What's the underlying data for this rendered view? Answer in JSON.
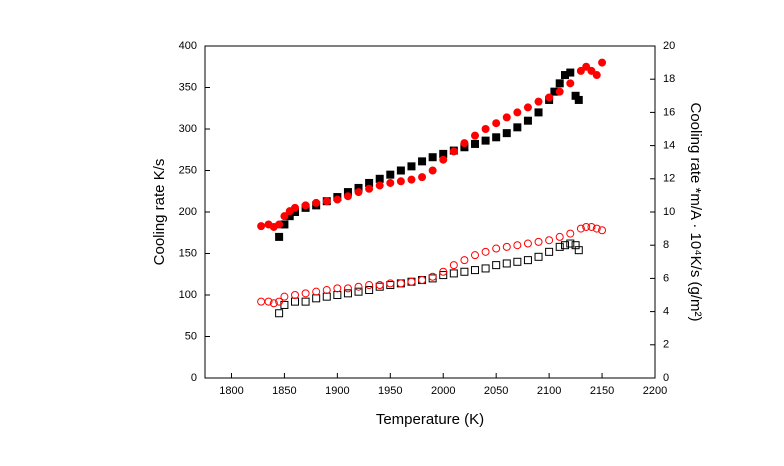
{
  "chart_data": {
    "type": "scatter",
    "x_label": "Temperature (K)",
    "y_label": "Cooling rate  K/s",
    "y2_label": "Cooling rate *m/A · 10⁴K/s (g/m²)",
    "xlim": [
      1775,
      2200
    ],
    "xticks": [
      1800,
      1850,
      1900,
      1950,
      2000,
      2050,
      2100,
      2150,
      2200
    ],
    "ylim": [
      0,
      400
    ],
    "yticks": [
      0,
      50,
      100,
      150,
      200,
      250,
      300,
      350,
      400
    ],
    "y2lim": [
      0,
      20
    ],
    "y2ticks": [
      0,
      2,
      4,
      6,
      8,
      10,
      12,
      14,
      16,
      18,
      20
    ],
    "series": [
      {
        "color": "#000000",
        "marker": "square",
        "filled": true,
        "x": [
          1845,
          1850,
          1855,
          1860,
          1870,
          1880,
          1890,
          1900,
          1910,
          1920,
          1930,
          1940,
          1950,
          1960,
          1970,
          1980,
          1990,
          2000,
          2010,
          2020,
          2030,
          2040,
          2050,
          2060,
          2070,
          2080,
          2090,
          2100,
          2105,
          2110,
          2115,
          2120,
          2125,
          2128
        ],
        "values": [
          170,
          185,
          195,
          200,
          205,
          208,
          213,
          218,
          224,
          229,
          235,
          240,
          245,
          250,
          255,
          261,
          266,
          270,
          274,
          278,
          282,
          286,
          290,
          295,
          302,
          310,
          320,
          335,
          345,
          355,
          365,
          368,
          340,
          335
        ]
      },
      {
        "color": "#ff0000",
        "marker": "circle",
        "filled": true,
        "x": [
          1828,
          1835,
          1840,
          1845,
          1850,
          1855,
          1860,
          1870,
          1880,
          1890,
          1900,
          1910,
          1920,
          1930,
          1940,
          1950,
          1960,
          1970,
          1980,
          1990,
          2000,
          2010,
          2020,
          2030,
          2040,
          2050,
          2060,
          2070,
          2080,
          2090,
          2100,
          2110,
          2120,
          2130,
          2135,
          2140,
          2145,
          2150
        ],
        "values": [
          183,
          185,
          182,
          185,
          195,
          201,
          205,
          208,
          211,
          213,
          215,
          219,
          224,
          228,
          232,
          235,
          237,
          239,
          242,
          250,
          263,
          273,
          283,
          292,
          300,
          307,
          314,
          320,
          326,
          333,
          338,
          345,
          355,
          370,
          375,
          370,
          365,
          380
        ]
      },
      {
        "color": "#000000",
        "marker": "square",
        "filled": false,
        "axis": "y2",
        "x": [
          1845,
          1850,
          1860,
          1870,
          1880,
          1890,
          1900,
          1910,
          1920,
          1930,
          1940,
          1950,
          1960,
          1970,
          1980,
          1990,
          2000,
          2010,
          2020,
          2030,
          2040,
          2050,
          2060,
          2070,
          2080,
          2090,
          2100,
          2110,
          2115,
          2120,
          2125,
          2128
        ],
        "values": [
          3.9,
          4.4,
          4.6,
          4.6,
          4.8,
          4.9,
          5.0,
          5.1,
          5.2,
          5.3,
          5.5,
          5.6,
          5.7,
          5.8,
          5.9,
          6.0,
          6.2,
          6.3,
          6.4,
          6.5,
          6.6,
          6.8,
          6.9,
          7.0,
          7.1,
          7.3,
          7.6,
          7.9,
          8.0,
          8.1,
          8.0,
          7.7
        ]
      },
      {
        "color": "#ff0000",
        "marker": "circle",
        "filled": false,
        "axis": "y2",
        "x": [
          1828,
          1835,
          1840,
          1845,
          1850,
          1860,
          1870,
          1880,
          1890,
          1900,
          1910,
          1920,
          1930,
          1940,
          1950,
          1960,
          1970,
          1980,
          1990,
          2000,
          2010,
          2020,
          2030,
          2040,
          2050,
          2060,
          2070,
          2080,
          2090,
          2100,
          2110,
          2120,
          2130,
          2135,
          2140,
          2145,
          2150
        ],
        "values": [
          4.6,
          4.6,
          4.5,
          4.6,
          4.9,
          5.0,
          5.1,
          5.2,
          5.3,
          5.4,
          5.4,
          5.5,
          5.6,
          5.6,
          5.7,
          5.7,
          5.8,
          5.9,
          6.1,
          6.4,
          6.8,
          7.1,
          7.4,
          7.6,
          7.8,
          7.9,
          8.0,
          8.1,
          8.2,
          8.3,
          8.5,
          8.7,
          9.0,
          9.1,
          9.1,
          9.0,
          8.9
        ]
      }
    ]
  }
}
